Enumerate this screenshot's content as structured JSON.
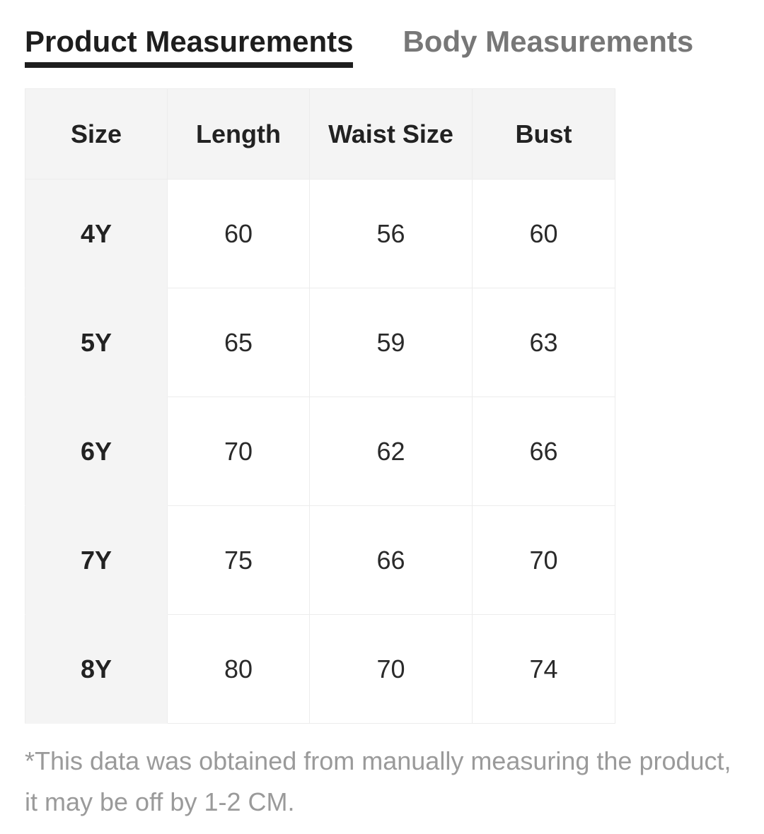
{
  "tabs": {
    "product": "Product Measurements",
    "body": "Body Measurements"
  },
  "table": {
    "headers": [
      "Size",
      "Length",
      "Waist Size",
      "Bust"
    ],
    "rows": [
      [
        "4Y",
        "60",
        "56",
        "60"
      ],
      [
        "5Y",
        "65",
        "59",
        "63"
      ],
      [
        "6Y",
        "70",
        "62",
        "66"
      ],
      [
        "7Y",
        "75",
        "66",
        "70"
      ],
      [
        "8Y",
        "80",
        "70",
        "74"
      ]
    ]
  },
  "note": "*This data was obtained from manually measuring the product, it may be off by 1-2 CM.",
  "colors": {
    "active_tab": "#1e1e1e",
    "inactive_tab": "#777777",
    "header_bg": "#f4f4f4",
    "note_text": "#9a9a9a"
  }
}
